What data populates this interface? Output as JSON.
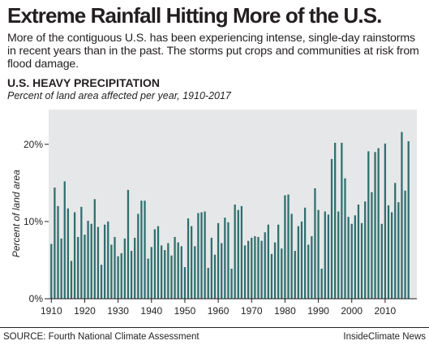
{
  "headline": "Extreme Rainfall Hitting More of the U.S.",
  "dek": "More of the contiguous U.S. has been experiencing intense, single-day rainstorms in recent years than in the past. The storms put crops and communities at risk from flood damage.",
  "footer": {
    "source": "SOURCE: Fourth National Climate Assessment",
    "credit": "InsideClimate News"
  },
  "colors": {
    "bar": "#2e6f6e",
    "plot_background": "#e6e7e8",
    "text": "#231f20"
  },
  "chart_data": {
    "type": "bar",
    "title": "U.S. HEAVY PRECIPITATION",
    "subtitle": "Percent of land area affected per year, 1910-2017",
    "xlabel": "",
    "ylabel": "Percent of land area",
    "ylim": [
      0,
      24.5
    ],
    "xlim": [
      1909.2,
      2019.5
    ],
    "yticks": [
      0,
      10,
      20
    ],
    "ytick_labels": [
      "0%",
      "10%",
      "20%"
    ],
    "xticks": [
      1910,
      1920,
      1930,
      1940,
      1950,
      1960,
      1970,
      1980,
      1990,
      2000,
      2010
    ],
    "grid": false,
    "legend": "none",
    "x": [
      1910,
      1911,
      1912,
      1913,
      1914,
      1915,
      1916,
      1917,
      1918,
      1919,
      1920,
      1921,
      1922,
      1923,
      1924,
      1925,
      1926,
      1927,
      1928,
      1929,
      1930,
      1931,
      1932,
      1933,
      1934,
      1935,
      1936,
      1937,
      1938,
      1939,
      1940,
      1941,
      1942,
      1943,
      1944,
      1945,
      1946,
      1947,
      1948,
      1949,
      1950,
      1951,
      1952,
      1953,
      1954,
      1955,
      1956,
      1957,
      1958,
      1959,
      1960,
      1961,
      1962,
      1963,
      1964,
      1965,
      1966,
      1967,
      1968,
      1969,
      1970,
      1971,
      1972,
      1973,
      1974,
      1975,
      1976,
      1977,
      1978,
      1979,
      1980,
      1981,
      1982,
      1983,
      1984,
      1985,
      1986,
      1987,
      1988,
      1989,
      1990,
      1991,
      1992,
      1993,
      1994,
      1995,
      1996,
      1997,
      1998,
      1999,
      2000,
      2001,
      2002,
      2003,
      2004,
      2005,
      2006,
      2007,
      2008,
      2009,
      2010,
      2011,
      2012,
      2013,
      2014,
      2015,
      2016,
      2017
    ],
    "values": [
      7.1,
      14.4,
      12.0,
      7.8,
      15.2,
      11.7,
      4.9,
      11.2,
      8.0,
      11.9,
      8.3,
      10.1,
      9.7,
      12.9,
      9.3,
      4.4,
      9.6,
      10.0,
      7.0,
      8.0,
      5.5,
      5.9,
      7.8,
      14.1,
      6.2,
      7.9,
      11.0,
      12.7,
      12.7,
      5.2,
      6.7,
      9.0,
      9.4,
      6.9,
      6.3,
      7.2,
      5.6,
      8.0,
      7.3,
      6.8,
      4.1,
      10.4,
      9.4,
      6.8,
      11.1,
      11.2,
      11.3,
      4.0,
      7.9,
      5.7,
      9.8,
      7.2,
      10.5,
      9.9,
      3.9,
      12.2,
      11.5,
      12.0,
      6.9,
      7.5,
      7.9,
      8.1,
      8.0,
      7.5,
      8.6,
      9.6,
      5.8,
      7.3,
      9.6,
      6.5,
      13.4,
      13.5,
      11.0,
      6.2,
      9.4,
      10.0,
      11.8,
      7.0,
      8.1,
      14.3,
      11.5,
      3.9,
      11.3,
      10.9,
      18.1,
      20.2,
      11.3,
      20.2,
      15.6,
      10.6,
      9.7,
      10.8,
      12.2,
      9.8,
      12.6,
      19.1,
      13.8,
      19.0,
      19.5,
      9.7,
      20.1,
      12.1,
      11.2,
      15.0,
      12.5,
      21.6,
      14.0,
      20.4
    ]
  }
}
